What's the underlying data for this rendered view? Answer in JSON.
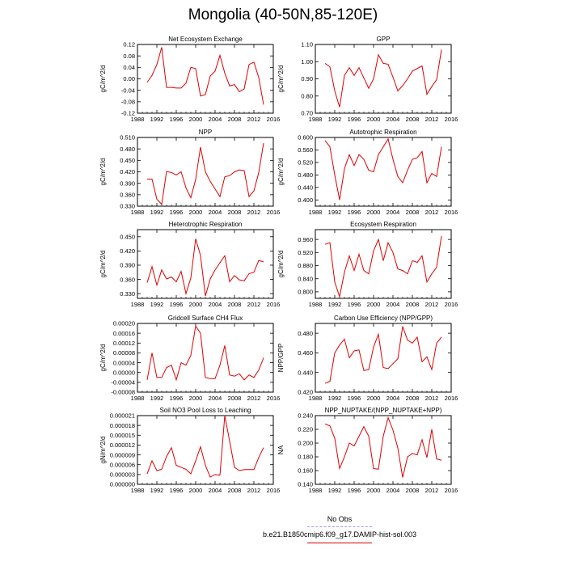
{
  "title": "Mongolia (40-50N,85-120E)",
  "colors": {
    "model_line": "#e00000",
    "obs_line": "#9a9af0",
    "axis": "#000000"
  },
  "legend": {
    "obs_label": "No Obs",
    "case_label": "b.e21.B1850cmip6.f09_g17.DAMIP-hist-sol.003"
  },
  "chart_data": [
    {
      "type": "line",
      "title": "Net Ecosystem Exchange",
      "ylabel": "gC/m^2/d",
      "xlim": [
        1988,
        2016
      ],
      "xticks": [
        "1988",
        "1992",
        "1996",
        "2000",
        "2004",
        "2008",
        "2012",
        "2016"
      ],
      "ylim": [
        -0.12,
        0.12
      ],
      "yticks": [
        "-0.12",
        "-0.08",
        "-0.04",
        "0.00",
        "0.04",
        "0.08",
        "0.12"
      ],
      "x": [
        1990,
        1991,
        1992,
        1993,
        1994,
        1995,
        1996,
        1997,
        1998,
        1999,
        2000,
        2001,
        2002,
        2003,
        2004,
        2005,
        2006,
        2007,
        2008,
        2009,
        2010,
        2011,
        2012,
        2013,
        2014
      ],
      "values": [
        -0.012,
        0.012,
        0.05,
        0.11,
        -0.03,
        -0.03,
        -0.032,
        -0.032,
        -0.015,
        0.04,
        0.036,
        -0.06,
        -0.055,
        0.01,
        0.027,
        0.082,
        0.02,
        -0.025,
        -0.02,
        -0.045,
        -0.035,
        0.05,
        0.058,
        0.005,
        -0.09
      ]
    },
    {
      "type": "line",
      "title": "GPP",
      "ylabel": "gC/m^2/d",
      "xlim": [
        1988,
        2016
      ],
      "xticks": [
        "1988",
        "1992",
        "1996",
        "2000",
        "2004",
        "2008",
        "2012",
        "2016"
      ],
      "ylim": [
        0.7,
        1.1
      ],
      "yticks": [
        "0.70",
        "0.80",
        "0.90",
        "1.00",
        "1.10"
      ],
      "x": [
        1990,
        1991,
        1992,
        1993,
        1994,
        1995,
        1996,
        1997,
        1998,
        1999,
        2000,
        2001,
        2002,
        2003,
        2004,
        2005,
        2006,
        2007,
        2008,
        2009,
        2010,
        2011,
        2012,
        2013,
        2014
      ],
      "values": [
        0.99,
        0.97,
        0.83,
        0.735,
        0.92,
        0.965,
        0.92,
        0.965,
        0.905,
        0.845,
        0.9,
        1.04,
        0.99,
        0.985,
        0.91,
        0.83,
        0.86,
        0.9,
        0.945,
        0.96,
        0.975,
        0.81,
        0.855,
        0.895,
        1.07
      ]
    },
    {
      "type": "line",
      "title": "NPP",
      "ylabel": "gC/m^2/d",
      "xlim": [
        1988,
        2016
      ],
      "xticks": [
        "1988",
        "1992",
        "1996",
        "2000",
        "2004",
        "2008",
        "2012",
        "2016"
      ],
      "ylim": [
        0.33,
        0.51
      ],
      "yticks": [
        "0.330",
        "0.360",
        "0.390",
        "0.420",
        "0.450",
        "0.480",
        "0.510"
      ],
      "x": [
        1990,
        1991,
        1992,
        1993,
        1994,
        1995,
        1996,
        1997,
        1998,
        1999,
        2000,
        2001,
        2002,
        2003,
        2004,
        2005,
        2006,
        2007,
        2008,
        2009,
        2010,
        2011,
        2012,
        2013,
        2014
      ],
      "values": [
        0.401,
        0.401,
        0.348,
        0.335,
        0.421,
        0.418,
        0.412,
        0.42,
        0.378,
        0.352,
        0.4,
        0.485,
        0.42,
        0.395,
        0.375,
        0.355,
        0.407,
        0.41,
        0.42,
        0.425,
        0.423,
        0.355,
        0.37,
        0.418,
        0.495
      ]
    },
    {
      "type": "line",
      "title": "Autotrophic Respiration",
      "ylabel": "gC/m^2/d",
      "xlim": [
        1988,
        2016
      ],
      "xticks": [
        "1988",
        "1992",
        "1996",
        "2000",
        "2004",
        "2008",
        "2012",
        "2016"
      ],
      "ylim": [
        0.38,
        0.6
      ],
      "yticks": [
        "0.400",
        "0.440",
        "0.480",
        "0.520",
        "0.560",
        "0.600"
      ],
      "x": [
        1990,
        1991,
        1992,
        1993,
        1994,
        1995,
        1996,
        1997,
        1998,
        1999,
        2000,
        2001,
        2002,
        2003,
        2004,
        2005,
        2006,
        2007,
        2008,
        2009,
        2010,
        2011,
        2012,
        2013,
        2014
      ],
      "values": [
        0.59,
        0.57,
        0.48,
        0.4,
        0.5,
        0.545,
        0.51,
        0.545,
        0.53,
        0.495,
        0.49,
        0.545,
        0.57,
        0.595,
        0.53,
        0.475,
        0.455,
        0.495,
        0.53,
        0.535,
        0.555,
        0.455,
        0.485,
        0.475,
        0.57
      ]
    },
    {
      "type": "line",
      "title": "Heterotrophic Respiration",
      "ylabel": "gC/m^2/d",
      "xlim": [
        1988,
        2016
      ],
      "xticks": [
        "1988",
        "1992",
        "1996",
        "2000",
        "2004",
        "2008",
        "2012",
        "2016"
      ],
      "ylim": [
        0.32,
        0.465
      ],
      "yticks": [
        "0.330",
        "0.360",
        "0.390",
        "0.420",
        "0.450"
      ],
      "x": [
        1990,
        1991,
        1992,
        1993,
        1994,
        1995,
        1996,
        1997,
        1998,
        1999,
        2000,
        2001,
        2002,
        2003,
        2004,
        2005,
        2006,
        2007,
        2008,
        2009,
        2010,
        2011,
        2012,
        2013,
        2014
      ],
      "values": [
        0.353,
        0.387,
        0.348,
        0.38,
        0.361,
        0.365,
        0.355,
        0.377,
        0.33,
        0.363,
        0.446,
        0.41,
        0.325,
        0.361,
        0.38,
        0.395,
        0.41,
        0.355,
        0.368,
        0.359,
        0.357,
        0.372,
        0.375,
        0.4,
        0.397
      ]
    },
    {
      "type": "line",
      "title": "Ecosystem Respiration",
      "ylabel": "gC/m^2/d",
      "xlim": [
        1988,
        2016
      ],
      "xticks": [
        "1988",
        "1992",
        "1996",
        "2000",
        "2004",
        "2008",
        "2012",
        "2016"
      ],
      "ylim": [
        0.78,
        0.99
      ],
      "yticks": [
        "0.800",
        "0.840",
        "0.880",
        "0.920",
        "0.960"
      ],
      "x": [
        1990,
        1991,
        1992,
        1993,
        1994,
        1995,
        1996,
        1997,
        1998,
        1999,
        2000,
        2001,
        2002,
        2003,
        2004,
        2005,
        2006,
        2007,
        2008,
        2009,
        2010,
        2011,
        2012,
        2013,
        2014
      ],
      "values": [
        0.945,
        0.95,
        0.83,
        0.785,
        0.86,
        0.91,
        0.865,
        0.915,
        0.865,
        0.855,
        0.925,
        0.96,
        0.895,
        0.95,
        0.92,
        0.87,
        0.865,
        0.855,
        0.895,
        0.89,
        0.91,
        0.83,
        0.855,
        0.875,
        0.97
      ]
    },
    {
      "type": "line",
      "title": "Gridcell Surface CH4 Flux",
      "ylabel": "gC/m^2/d",
      "xlim": [
        1988,
        2016
      ],
      "xticks": [
        "1988",
        "1992",
        "1996",
        "2000",
        "2004",
        "2008",
        "2012",
        "2016"
      ],
      "ylim": [
        -8e-05,
        0.0002
      ],
      "yticks": [
        "-0.00008",
        "-0.00004",
        "0.00000",
        "0.00004",
        "0.00008",
        "0.00012",
        "0.00016",
        "0.00020"
      ],
      "x": [
        1990,
        1991,
        1992,
        1993,
        1994,
        1995,
        1996,
        1997,
        1998,
        1999,
        2000,
        2001,
        2002,
        2003,
        2004,
        2005,
        2006,
        2007,
        2008,
        2009,
        2010,
        2011,
        2012,
        2013,
        2014
      ],
      "values": [
        -3e-05,
        8e-05,
        -2e-05,
        -2e-05,
        2e-05,
        3e-05,
        -3e-05,
        4e-05,
        3e-05,
        7e-05,
        0.00019,
        0.00016,
        -2e-05,
        -2.5e-05,
        -2.5e-05,
        3e-05,
        0.00011,
        -1e-05,
        -1.5e-05,
        -5e-06,
        -3e-05,
        -1e-05,
        -2e-05,
        1e-05,
        6e-05
      ]
    },
    {
      "type": "line",
      "title": "Carbon Use Efficiency (NPP/GPP)",
      "ylabel": "NPP/GPP",
      "xlim": [
        1988,
        2016
      ],
      "xticks": [
        "1988",
        "1992",
        "1996",
        "2000",
        "2004",
        "2008",
        "2012",
        "2016"
      ],
      "ylim": [
        0.42,
        0.49
      ],
      "yticks": [
        "0.420",
        "0.440",
        "0.460",
        "0.480"
      ],
      "x": [
        1990,
        1991,
        1992,
        1993,
        1994,
        1995,
        1996,
        1997,
        1998,
        1999,
        2000,
        2001,
        2002,
        2003,
        2004,
        2005,
        2006,
        2007,
        2008,
        2009,
        2010,
        2011,
        2012,
        2013,
        2014
      ],
      "values": [
        0.429,
        0.431,
        0.46,
        0.468,
        0.474,
        0.455,
        0.462,
        0.463,
        0.442,
        0.443,
        0.466,
        0.479,
        0.445,
        0.444,
        0.449,
        0.454,
        0.487,
        0.473,
        0.47,
        0.476,
        0.451,
        0.456,
        0.443,
        0.47,
        0.476
      ]
    },
    {
      "type": "line",
      "title": "Soil NO3 Pool Loss to Leaching",
      "ylabel": "gN/m^2/d",
      "xlim": [
        1988,
        2016
      ],
      "xticks": [
        "1988",
        "1992",
        "1996",
        "2000",
        "2004",
        "2008",
        "2012",
        "2016"
      ],
      "ylim": [
        0.0,
        2.1e-05
      ],
      "yticks": [
        "0.000000",
        "0.000003",
        "0.000006",
        "0.000009",
        "0.000012",
        "0.000015",
        "0.000018",
        "0.000021"
      ],
      "x": [
        1990,
        1991,
        1992,
        1993,
        1994,
        1995,
        1996,
        1997,
        1998,
        1999,
        2000,
        2001,
        2002,
        2003,
        2004,
        2005,
        2006,
        2007,
        2008,
        2009,
        2010,
        2011,
        2012,
        2013,
        2014
      ],
      "values": [
        3.2e-06,
        7.2e-06,
        4.2e-06,
        4.6e-06,
        8.5e-06,
        1.12e-05,
        5.8e-06,
        5.2e-06,
        4.6e-06,
        3.2e-06,
        7.2e-06,
        1.15e-05,
        5.8e-06,
        2.2e-06,
        3e-06,
        2.8e-06,
        2.1e-05,
        1.32e-05,
        5.2e-06,
        4.2e-06,
        4.5e-06,
        4.5e-06,
        4.5e-06,
        8.2e-06,
        1.12e-05
      ]
    },
    {
      "type": "line",
      "title": "NPP_NUPTAKE/(NPP_NUPTAKE+NPP)",
      "ylabel": "NA",
      "xlim": [
        1988,
        2016
      ],
      "xticks": [
        "1988",
        "1992",
        "1996",
        "2000",
        "2004",
        "2008",
        "2012",
        "2016"
      ],
      "ylim": [
        0.14,
        0.24
      ],
      "yticks": [
        "0.140",
        "0.160",
        "0.180",
        "0.200",
        "0.220",
        "0.240"
      ],
      "x": [
        1990,
        1991,
        1992,
        1993,
        1994,
        1995,
        1996,
        1997,
        1998,
        1999,
        2000,
        2001,
        2002,
        2003,
        2004,
        2005,
        2006,
        2007,
        2008,
        2009,
        2010,
        2011,
        2012,
        2013,
        2014
      ],
      "values": [
        0.228,
        0.225,
        0.207,
        0.163,
        0.18,
        0.2,
        0.196,
        0.21,
        0.224,
        0.21,
        0.163,
        0.162,
        0.21,
        0.237,
        0.219,
        0.193,
        0.15,
        0.18,
        0.185,
        0.183,
        0.205,
        0.179,
        0.22,
        0.177,
        0.175
      ]
    }
  ]
}
